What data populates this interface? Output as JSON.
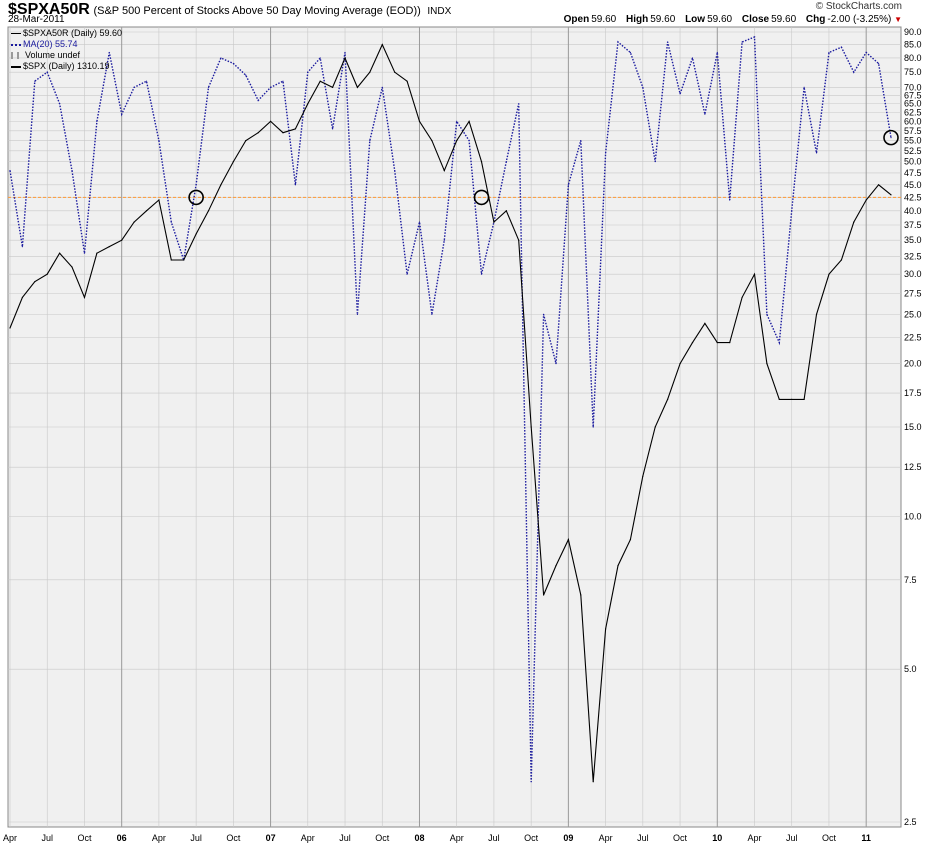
{
  "header": {
    "symbol": "$SPXA50R",
    "description": "(S&P 500 Percent of Stocks Above 50 Day Moving Average (EOD))",
    "exchange": "INDX",
    "date": "28-Mar-2011",
    "logo": "© StockCharts.com",
    "open_label": "Open",
    "open": "59.60",
    "high_label": "High",
    "high": "59.60",
    "low_label": "Low",
    "low": "59.60",
    "close_label": "Close",
    "close": "59.60",
    "chg_label": "Chg",
    "chg": "-2.00 (-3.25%)"
  },
  "legend": {
    "main": "$SPXA50R (Daily) 59.60",
    "ma": "MA(20) 55.74",
    "volume": "Volume undef",
    "spx": "$SPX (Daily) 1310.19"
  },
  "colors": {
    "ma": "#1a1a9e",
    "spx": "#000000",
    "threshold": "#ff9933",
    "grid": "#c8c8c8",
    "bg": "#f0f0f0"
  },
  "chart_data": {
    "type": "line",
    "scale": "log",
    "ylim": [
      2.5,
      90
    ],
    "y_ticks": [
      "2.5",
      "5.0",
      "7.5",
      "10.0",
      "12.5",
      "15.0",
      "17.5",
      "20.0",
      "22.5",
      "25.0",
      "27.5",
      "30.0",
      "32.5",
      "35.0",
      "37.5",
      "40.0",
      "42.5",
      "45.0",
      "47.5",
      "50.0",
      "52.5",
      "55.0",
      "57.5",
      "60.0",
      "62.5",
      "65.0",
      "67.5",
      "70.0",
      "75.0",
      "80.0",
      "85.0",
      "90.0"
    ],
    "x_ticks": [
      "Apr",
      "Jul",
      "Oct",
      "06",
      "Apr",
      "Jul",
      "Oct",
      "07",
      "Apr",
      "Jul",
      "Oct",
      "08",
      "Apr",
      "Jul",
      "Oct",
      "09",
      "Apr",
      "Jul",
      "Oct",
      "10",
      "Apr",
      "Jul",
      "Oct",
      "11"
    ],
    "x_range": [
      "2005-04",
      "2011-03"
    ],
    "threshold": 42.5,
    "series": [
      {
        "name": "MA(20) 55.74",
        "style": "dotted",
        "x": [
          "2005-04",
          "2005-05",
          "2005-06",
          "2005-07",
          "2005-08",
          "2005-09",
          "2005-10",
          "2005-11",
          "2005-12",
          "2006-01",
          "2006-02",
          "2006-03",
          "2006-04",
          "2006-05",
          "2006-06",
          "2006-07",
          "2006-08",
          "2006-09",
          "2006-10",
          "2006-11",
          "2006-12",
          "2007-01",
          "2007-02",
          "2007-03",
          "2007-04",
          "2007-05",
          "2007-06",
          "2007-07",
          "2007-08",
          "2007-09",
          "2007-10",
          "2007-11",
          "2007-12",
          "2008-01",
          "2008-02",
          "2008-03",
          "2008-04",
          "2008-05",
          "2008-06",
          "2008-07",
          "2008-08",
          "2008-09",
          "2008-10",
          "2008-11",
          "2008-12",
          "2009-01",
          "2009-02",
          "2009-03",
          "2009-04",
          "2009-05",
          "2009-06",
          "2009-07",
          "2009-08",
          "2009-09",
          "2009-10",
          "2009-11",
          "2009-12",
          "2010-01",
          "2010-02",
          "2010-03",
          "2010-04",
          "2010-05",
          "2010-06",
          "2010-07",
          "2010-08",
          "2010-09",
          "2010-10",
          "2010-11",
          "2010-12",
          "2011-01",
          "2011-02",
          "2011-03"
        ],
        "values": [
          48,
          34,
          72,
          75,
          65,
          48,
          33,
          60,
          82,
          62,
          70,
          72,
          55,
          38,
          32,
          45,
          70,
          80,
          78,
          74,
          66,
          70,
          72,
          45,
          75,
          80,
          58,
          82,
          25,
          55,
          70,
          48,
          30,
          38,
          25,
          35,
          60,
          55,
          30,
          38,
          50,
          65,
          3,
          25,
          20,
          45,
          55,
          15,
          52,
          86,
          82,
          70,
          50,
          86,
          68,
          80,
          62,
          82,
          42,
          86,
          88,
          25,
          22,
          40,
          70,
          52,
          82,
          84,
          75,
          82,
          78,
          55.74
        ]
      },
      {
        "name": "$SPX (Daily) 1310.19",
        "style": "solid",
        "x": [
          "2005-04",
          "2005-05",
          "2005-06",
          "2005-07",
          "2005-08",
          "2005-09",
          "2005-10",
          "2005-11",
          "2005-12",
          "2006-01",
          "2006-02",
          "2006-03",
          "2006-04",
          "2006-05",
          "2006-06",
          "2006-07",
          "2006-08",
          "2006-09",
          "2006-10",
          "2006-11",
          "2006-12",
          "2007-01",
          "2007-02",
          "2007-03",
          "2007-04",
          "2007-05",
          "2007-06",
          "2007-07",
          "2007-08",
          "2007-09",
          "2007-10",
          "2007-11",
          "2007-12",
          "2008-01",
          "2008-02",
          "2008-03",
          "2008-04",
          "2008-05",
          "2008-06",
          "2008-07",
          "2008-08",
          "2008-09",
          "2008-10",
          "2008-11",
          "2008-12",
          "2009-01",
          "2009-02",
          "2009-03",
          "2009-04",
          "2009-05",
          "2009-06",
          "2009-07",
          "2009-08",
          "2009-09",
          "2009-10",
          "2009-11",
          "2009-12",
          "2010-01",
          "2010-02",
          "2010-03",
          "2010-04",
          "2010-05",
          "2010-06",
          "2010-07",
          "2010-08",
          "2010-09",
          "2010-10",
          "2010-11",
          "2010-12",
          "2011-01",
          "2011-02",
          "2011-03"
        ],
        "values": [
          23.5,
          27,
          29,
          30,
          33,
          31,
          27,
          33,
          34,
          35,
          38,
          40,
          42,
          32,
          32,
          36,
          40,
          45,
          50,
          55,
          57,
          60,
          57,
          58,
          65,
          72,
          70,
          80,
          70,
          75,
          85,
          75,
          72,
          60,
          55,
          48,
          55,
          60,
          50,
          38,
          40,
          35,
          15,
          7,
          8,
          9,
          7,
          3,
          6,
          8,
          9,
          12,
          15,
          17,
          20,
          22,
          24,
          22,
          22,
          27,
          30,
          20,
          17,
          17,
          17,
          25,
          30,
          32,
          38,
          42,
          45,
          43
        ]
      }
    ],
    "markers": [
      {
        "label": "Jul 06 cross",
        "x": "2006-07",
        "y": 42.5
      },
      {
        "label": "Jun 08 cross",
        "x": "2008-06",
        "y": 42.5
      },
      {
        "label": "latest",
        "x": "2011-03",
        "y": 55.74
      }
    ]
  }
}
